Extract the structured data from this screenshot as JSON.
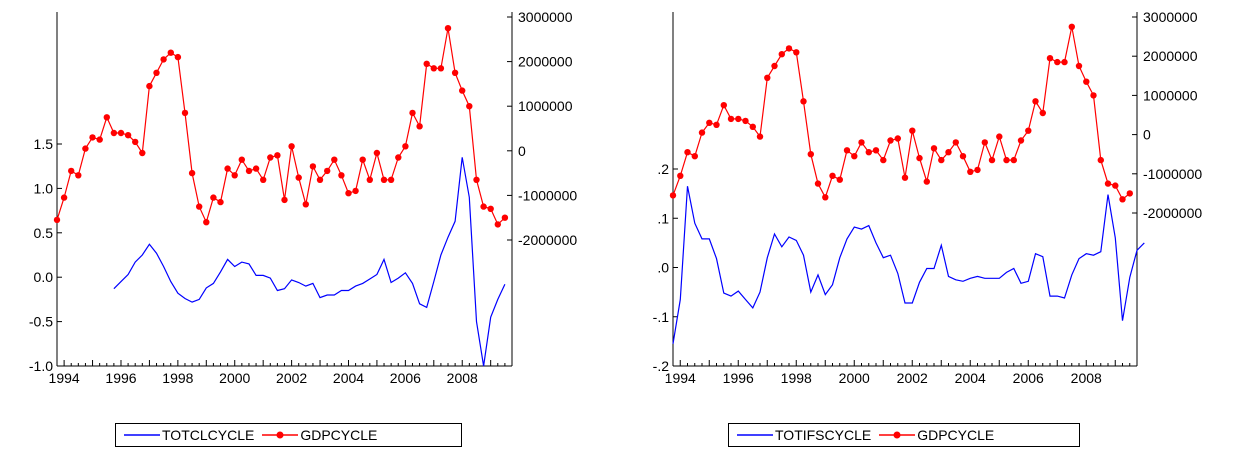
{
  "chart_data": [
    {
      "type": "line",
      "title": "",
      "xlabel": "",
      "x_ticks": [
        "1994",
        "1996",
        "1998",
        "2000",
        "2002",
        "2004",
        "2006",
        "2008"
      ],
      "x_range": [
        1993.75,
        2009.75
      ],
      "left_axis": {
        "ticks": [
          "1.5",
          "1.0",
          "0.5",
          "0.0",
          "-0.5",
          "-1.0"
        ],
        "tick_values": [
          1.5,
          1.0,
          0.5,
          0.0,
          -0.5,
          -1.0
        ],
        "range": [
          -1.0,
          1.5
        ]
      },
      "right_axis": {
        "ticks": [
          "3000000",
          "2000000",
          "1000000",
          "0",
          "-1000000",
          "-2000000"
        ],
        "tick_values": [
          3000000,
          2000000,
          1000000,
          0,
          -1000000,
          -2000000
        ],
        "range": [
          -2000000,
          3000000
        ]
      },
      "series": [
        {
          "name": "TOTCLCYCLE",
          "axis": "left",
          "color": "#0000ff",
          "marker": false,
          "start": 1995.75,
          "values": [
            -0.13,
            -0.05,
            0.03,
            0.17,
            0.25,
            0.37,
            0.27,
            0.12,
            -0.05,
            -0.18,
            -0.24,
            -0.28,
            -0.25,
            -0.12,
            -0.07,
            0.06,
            0.2,
            0.12,
            0.17,
            0.15,
            0.02,
            0.02,
            -0.01,
            -0.15,
            -0.13,
            -0.03,
            -0.06,
            -0.1,
            -0.07,
            -0.23,
            -0.2,
            -0.2,
            -0.15,
            -0.15,
            -0.1,
            -0.07,
            -0.02,
            0.03,
            0.2,
            -0.06,
            -0.01,
            0.05,
            -0.07,
            -0.3,
            -0.34,
            -0.05,
            0.25,
            0.45,
            0.63,
            1.35,
            0.9,
            -0.5,
            -1.0,
            -0.45,
            -0.25,
            -0.08
          ]
        },
        {
          "name": "GDPCYCLE",
          "axis": "right",
          "color": "#ff0000",
          "marker": true,
          "start": 1993.75,
          "values": [
            -1550000,
            -1050000,
            -450000,
            -550000,
            50000,
            300000,
            250000,
            750000,
            400000,
            400000,
            350000,
            200000,
            -50000,
            1450000,
            1750000,
            2050000,
            2200000,
            2100000,
            850000,
            -500000,
            -1250000,
            -1600000,
            -1050000,
            -1150000,
            -400000,
            -550000,
            -200000,
            -450000,
            -400000,
            -650000,
            -150000,
            -100000,
            -1100000,
            100000,
            -600000,
            -1200000,
            -350000,
            -650000,
            -450000,
            -200000,
            -550000,
            -950000,
            -900000,
            -200000,
            -650000,
            -50000,
            -650000,
            -650000,
            -150000,
            100000,
            850000,
            550000,
            1950000,
            1850000,
            1850000,
            2750000,
            1750000,
            1350000,
            1000000,
            -650000,
            -1250000,
            -1300000,
            -1650000,
            -1500000
          ]
        }
      ],
      "legend": {
        "position": "bottom",
        "entries": [
          "TOTCLCYCLE",
          "GDPCYCLE"
        ]
      },
      "grid": false
    },
    {
      "type": "line",
      "title": "",
      "xlabel": "",
      "x_ticks": [
        "1994",
        "1996",
        "1998",
        "2000",
        "2002",
        "2004",
        "2006",
        "2008"
      ],
      "x_range": [
        1993.75,
        2009.75
      ],
      "left_axis": {
        "ticks": [
          ".2",
          ".1",
          ".0",
          "-.1",
          "-.2"
        ],
        "tick_values": [
          0.2,
          0.1,
          0.0,
          -0.1,
          -0.2
        ],
        "range": [
          -0.2,
          0.2
        ]
      },
      "right_axis": {
        "ticks": [
          "3000000",
          "2000000",
          "1000000",
          "0",
          "-1000000",
          "-2000000"
        ],
        "tick_values": [
          3000000,
          2000000,
          1000000,
          0,
          -1000000,
          -2000000
        ],
        "range": [
          -2000000,
          3000000
        ]
      },
      "series": [
        {
          "name": "TOTIFSCYCLE",
          "axis": "left",
          "color": "#0000ff",
          "marker": false,
          "start": 1993.75,
          "values": [
            -0.155,
            -0.065,
            0.165,
            0.09,
            0.058,
            0.058,
            0.018,
            -0.052,
            -0.058,
            -0.048,
            -0.065,
            -0.082,
            -0.05,
            0.02,
            0.068,
            0.042,
            0.062,
            0.055,
            0.025,
            -0.05,
            -0.015,
            -0.055,
            -0.035,
            0.02,
            0.058,
            0.082,
            0.078,
            0.085,
            0.05,
            0.02,
            0.025,
            -0.012,
            -0.072,
            -0.072,
            -0.03,
            -0.002,
            -0.002,
            0.045,
            -0.018,
            -0.025,
            -0.028,
            -0.022,
            -0.018,
            -0.022,
            -0.022,
            -0.022,
            -0.01,
            -0.002,
            -0.032,
            -0.028,
            0.028,
            0.022,
            -0.058,
            -0.058,
            -0.062,
            -0.015,
            0.018,
            0.028,
            0.025,
            0.032,
            0.148,
            0.06,
            -0.108,
            -0.02,
            0.035,
            0.05
          ]
        },
        {
          "name": "GDPCYCLE",
          "axis": "right",
          "color": "#ff0000",
          "marker": true,
          "start": 1993.75,
          "values": [
            -1550000,
            -1050000,
            -450000,
            -550000,
            50000,
            300000,
            250000,
            750000,
            400000,
            400000,
            350000,
            200000,
            -50000,
            1450000,
            1750000,
            2050000,
            2200000,
            2100000,
            850000,
            -500000,
            -1250000,
            -1600000,
            -1050000,
            -1150000,
            -400000,
            -550000,
            -200000,
            -450000,
            -400000,
            -650000,
            -150000,
            -100000,
            -1100000,
            100000,
            -600000,
            -1200000,
            -350000,
            -650000,
            -450000,
            -200000,
            -550000,
            -950000,
            -900000,
            -200000,
            -650000,
            -50000,
            -650000,
            -650000,
            -150000,
            100000,
            850000,
            550000,
            1950000,
            1850000,
            1850000,
            2750000,
            1750000,
            1350000,
            1000000,
            -650000,
            -1250000,
            -1300000,
            -1650000,
            -1500000
          ]
        }
      ],
      "legend": {
        "position": "bottom",
        "entries": [
          "TOTIFSCYCLE",
          "GDPCYCLE"
        ]
      },
      "grid": false
    }
  ]
}
